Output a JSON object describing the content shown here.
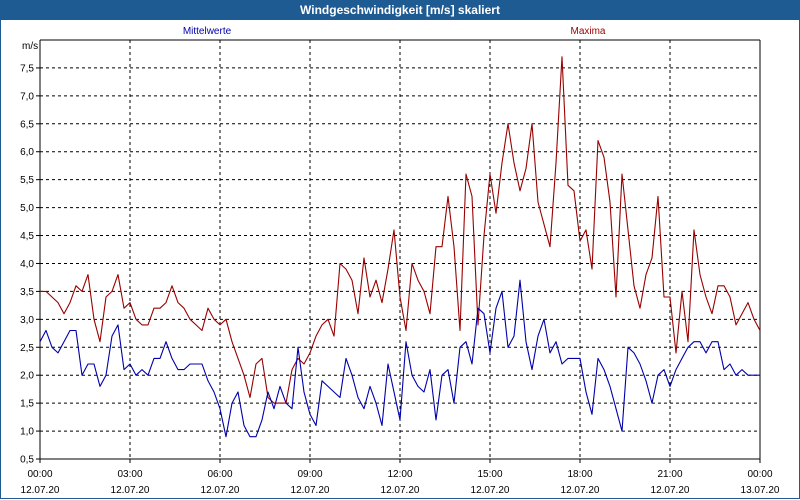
{
  "window": {
    "title": "Windgeschwindigkeit [m/s] skaliert"
  },
  "colors": {
    "titlebar": "#1f5b93",
    "mean": "#0000aa",
    "max": "#990000",
    "grid": "#000000"
  },
  "chart_data": {
    "type": "line",
    "title": "Windgeschwindigkeit [m/s] skaliert",
    "ylabel": "m/s",
    "ylim": [
      0.5,
      8.0
    ],
    "xlim": [
      0,
      24
    ],
    "grid": true,
    "y_ticks": [
      "0,5",
      "1,0",
      "1,5",
      "2,0",
      "2,5",
      "3,0",
      "3,5",
      "4,0",
      "4,5",
      "5,0",
      "5,5",
      "6,0",
      "6,5",
      "7,0",
      "7,5"
    ],
    "x_ticks": [
      {
        "time": "00:00",
        "date": "12.07.20"
      },
      {
        "time": "03:00",
        "date": "12.07.20"
      },
      {
        "time": "06:00",
        "date": "12.07.20"
      },
      {
        "time": "09:00",
        "date": "12.07.20"
      },
      {
        "time": "12:00",
        "date": "12.07.20"
      },
      {
        "time": "15:00",
        "date": "12.07.20"
      },
      {
        "time": "18:00",
        "date": "12.07.20"
      },
      {
        "time": "21:00",
        "date": "12.07.20"
      },
      {
        "time": "00:00",
        "date": "13.07.20"
      }
    ],
    "series": [
      {
        "name": "Mittelwerte",
        "points": [
          [
            0,
            2.6
          ],
          [
            0.2,
            2.8
          ],
          [
            0.4,
            2.5
          ],
          [
            0.6,
            2.4
          ],
          [
            0.8,
            2.6
          ],
          [
            1.0,
            2.8
          ],
          [
            1.2,
            2.8
          ],
          [
            1.4,
            2.0
          ],
          [
            1.6,
            2.2
          ],
          [
            1.8,
            2.2
          ],
          [
            2.0,
            1.8
          ],
          [
            2.2,
            2.0
          ],
          [
            2.4,
            2.7
          ],
          [
            2.6,
            2.9
          ],
          [
            2.8,
            2.1
          ],
          [
            3.0,
            2.2
          ],
          [
            3.2,
            2.0
          ],
          [
            3.4,
            2.1
          ],
          [
            3.6,
            2.0
          ],
          [
            3.8,
            2.3
          ],
          [
            4.0,
            2.3
          ],
          [
            4.2,
            2.6
          ],
          [
            4.4,
            2.3
          ],
          [
            4.6,
            2.1
          ],
          [
            4.8,
            2.1
          ],
          [
            5.0,
            2.2
          ],
          [
            5.2,
            2.2
          ],
          [
            5.4,
            2.2
          ],
          [
            5.6,
            1.9
          ],
          [
            5.8,
            1.7
          ],
          [
            6.0,
            1.4
          ],
          [
            6.2,
            0.9
          ],
          [
            6.4,
            1.5
          ],
          [
            6.6,
            1.7
          ],
          [
            6.8,
            1.1
          ],
          [
            7.0,
            0.9
          ],
          [
            7.2,
            0.9
          ],
          [
            7.4,
            1.2
          ],
          [
            7.6,
            1.7
          ],
          [
            7.8,
            1.4
          ],
          [
            8.0,
            1.8
          ],
          [
            8.2,
            1.5
          ],
          [
            8.4,
            1.4
          ],
          [
            8.6,
            2.5
          ],
          [
            8.8,
            1.7
          ],
          [
            9.0,
            1.3
          ],
          [
            9.2,
            1.1
          ],
          [
            9.4,
            1.9
          ],
          [
            9.6,
            1.8
          ],
          [
            9.8,
            1.7
          ],
          [
            10.0,
            1.6
          ],
          [
            10.2,
            2.3
          ],
          [
            10.4,
            2.0
          ],
          [
            10.6,
            1.6
          ],
          [
            10.8,
            1.4
          ],
          [
            11.0,
            1.8
          ],
          [
            11.2,
            1.5
          ],
          [
            11.4,
            1.1
          ],
          [
            11.6,
            2.2
          ],
          [
            11.8,
            1.7
          ],
          [
            12.0,
            1.2
          ],
          [
            12.2,
            2.6
          ],
          [
            12.4,
            2.0
          ],
          [
            12.6,
            1.8
          ],
          [
            12.8,
            1.7
          ],
          [
            13.0,
            2.1
          ],
          [
            13.2,
            1.2
          ],
          [
            13.4,
            2.0
          ],
          [
            13.6,
            2.1
          ],
          [
            13.8,
            1.5
          ],
          [
            14.0,
            2.5
          ],
          [
            14.2,
            2.6
          ],
          [
            14.4,
            2.2
          ],
          [
            14.6,
            3.2
          ],
          [
            14.8,
            3.1
          ],
          [
            15.0,
            2.4
          ],
          [
            15.2,
            3.2
          ],
          [
            15.4,
            3.5
          ],
          [
            15.6,
            2.5
          ],
          [
            15.8,
            2.7
          ],
          [
            16.0,
            3.7
          ],
          [
            16.2,
            2.6
          ],
          [
            16.4,
            2.1
          ],
          [
            16.6,
            2.7
          ],
          [
            16.8,
            3.0
          ],
          [
            17.0,
            2.4
          ],
          [
            17.2,
            2.6
          ],
          [
            17.4,
            2.2
          ],
          [
            17.6,
            2.3
          ],
          [
            17.8,
            2.3
          ],
          [
            18.0,
            2.3
          ],
          [
            18.2,
            1.7
          ],
          [
            18.4,
            1.3
          ],
          [
            18.6,
            2.3
          ],
          [
            18.8,
            2.1
          ],
          [
            19.0,
            1.8
          ],
          [
            19.2,
            1.4
          ],
          [
            19.4,
            1.0
          ],
          [
            19.6,
            2.5
          ],
          [
            19.8,
            2.4
          ],
          [
            20.0,
            2.2
          ],
          [
            20.2,
            1.9
          ],
          [
            20.4,
            1.5
          ],
          [
            20.6,
            2.0
          ],
          [
            20.8,
            2.1
          ],
          [
            21.0,
            1.8
          ],
          [
            21.2,
            2.1
          ],
          [
            21.4,
            2.3
          ],
          [
            21.6,
            2.5
          ],
          [
            21.8,
            2.6
          ],
          [
            22.0,
            2.6
          ],
          [
            22.2,
            2.4
          ],
          [
            22.4,
            2.6
          ],
          [
            22.6,
            2.6
          ],
          [
            22.8,
            2.1
          ],
          [
            23.0,
            2.2
          ],
          [
            23.2,
            2.0
          ],
          [
            23.4,
            2.1
          ],
          [
            23.6,
            2.0
          ],
          [
            23.8,
            2.0
          ],
          [
            24.0,
            2.0
          ]
        ]
      },
      {
        "name": "Maxima",
        "points": [
          [
            0,
            3.5
          ],
          [
            0.2,
            3.5
          ],
          [
            0.4,
            3.4
          ],
          [
            0.6,
            3.3
          ],
          [
            0.8,
            3.1
          ],
          [
            1.0,
            3.3
          ],
          [
            1.2,
            3.6
          ],
          [
            1.4,
            3.5
          ],
          [
            1.6,
            3.8
          ],
          [
            1.8,
            3.0
          ],
          [
            2.0,
            2.6
          ],
          [
            2.2,
            3.4
          ],
          [
            2.4,
            3.5
          ],
          [
            2.6,
            3.8
          ],
          [
            2.8,
            3.2
          ],
          [
            3.0,
            3.3
          ],
          [
            3.2,
            3.0
          ],
          [
            3.4,
            2.9
          ],
          [
            3.6,
            2.9
          ],
          [
            3.8,
            3.2
          ],
          [
            4.0,
            3.2
          ],
          [
            4.2,
            3.3
          ],
          [
            4.4,
            3.6
          ],
          [
            4.6,
            3.3
          ],
          [
            4.8,
            3.2
          ],
          [
            5.0,
            3.0
          ],
          [
            5.2,
            2.9
          ],
          [
            5.4,
            2.8
          ],
          [
            5.6,
            3.2
          ],
          [
            5.8,
            3.0
          ],
          [
            6.0,
            2.9
          ],
          [
            6.2,
            3.0
          ],
          [
            6.4,
            2.6
          ],
          [
            6.6,
            2.3
          ],
          [
            6.8,
            2.0
          ],
          [
            7.0,
            1.6
          ],
          [
            7.2,
            2.2
          ],
          [
            7.4,
            2.3
          ],
          [
            7.6,
            1.6
          ],
          [
            7.8,
            1.5
          ],
          [
            8.0,
            1.5
          ],
          [
            8.2,
            1.5
          ],
          [
            8.4,
            2.1
          ],
          [
            8.6,
            2.3
          ],
          [
            8.8,
            2.2
          ],
          [
            9.0,
            2.4
          ],
          [
            9.2,
            2.7
          ],
          [
            9.4,
            2.9
          ],
          [
            9.6,
            3.0
          ],
          [
            9.8,
            2.7
          ],
          [
            10.0,
            4.0
          ],
          [
            10.2,
            3.9
          ],
          [
            10.4,
            3.7
          ],
          [
            10.6,
            3.1
          ],
          [
            10.8,
            4.1
          ],
          [
            11.0,
            3.4
          ],
          [
            11.2,
            3.7
          ],
          [
            11.4,
            3.3
          ],
          [
            11.6,
            3.9
          ],
          [
            11.8,
            4.6
          ],
          [
            12.0,
            3.4
          ],
          [
            12.2,
            2.8
          ],
          [
            12.4,
            4.0
          ],
          [
            12.6,
            3.7
          ],
          [
            12.8,
            3.5
          ],
          [
            13.0,
            3.1
          ],
          [
            13.2,
            4.3
          ],
          [
            13.4,
            4.3
          ],
          [
            13.6,
            5.2
          ],
          [
            13.8,
            4.3
          ],
          [
            14.0,
            2.8
          ],
          [
            14.2,
            5.6
          ],
          [
            14.4,
            5.2
          ],
          [
            14.6,
            2.9
          ],
          [
            14.8,
            4.5
          ],
          [
            15.0,
            5.6
          ],
          [
            15.2,
            4.9
          ],
          [
            15.4,
            5.8
          ],
          [
            15.6,
            6.5
          ],
          [
            15.8,
            5.8
          ],
          [
            16.0,
            5.3
          ],
          [
            16.2,
            5.7
          ],
          [
            16.4,
            6.5
          ],
          [
            16.6,
            5.1
          ],
          [
            16.8,
            4.7
          ],
          [
            17.0,
            4.3
          ],
          [
            17.2,
            5.8
          ],
          [
            17.4,
            7.7
          ],
          [
            17.6,
            5.4
          ],
          [
            17.8,
            5.3
          ],
          [
            18.0,
            4.4
          ],
          [
            18.2,
            4.6
          ],
          [
            18.4,
            3.9
          ],
          [
            18.6,
            6.2
          ],
          [
            18.8,
            5.9
          ],
          [
            19.0,
            5.1
          ],
          [
            19.2,
            3.4
          ],
          [
            19.4,
            5.6
          ],
          [
            19.6,
            4.6
          ],
          [
            19.8,
            3.6
          ],
          [
            20.0,
            3.2
          ],
          [
            20.2,
            3.8
          ],
          [
            20.4,
            4.1
          ],
          [
            20.6,
            5.2
          ],
          [
            20.8,
            3.4
          ],
          [
            21.0,
            3.4
          ],
          [
            21.2,
            2.4
          ],
          [
            21.4,
            3.5
          ],
          [
            21.6,
            2.6
          ],
          [
            21.8,
            4.6
          ],
          [
            22.0,
            3.8
          ],
          [
            22.2,
            3.4
          ],
          [
            22.4,
            3.1
          ],
          [
            22.6,
            3.6
          ],
          [
            22.8,
            3.6
          ],
          [
            23.0,
            3.4
          ],
          [
            23.2,
            2.9
          ],
          [
            23.4,
            3.1
          ],
          [
            23.6,
            3.3
          ],
          [
            23.8,
            3.0
          ],
          [
            24.0,
            2.8
          ]
        ]
      }
    ]
  }
}
